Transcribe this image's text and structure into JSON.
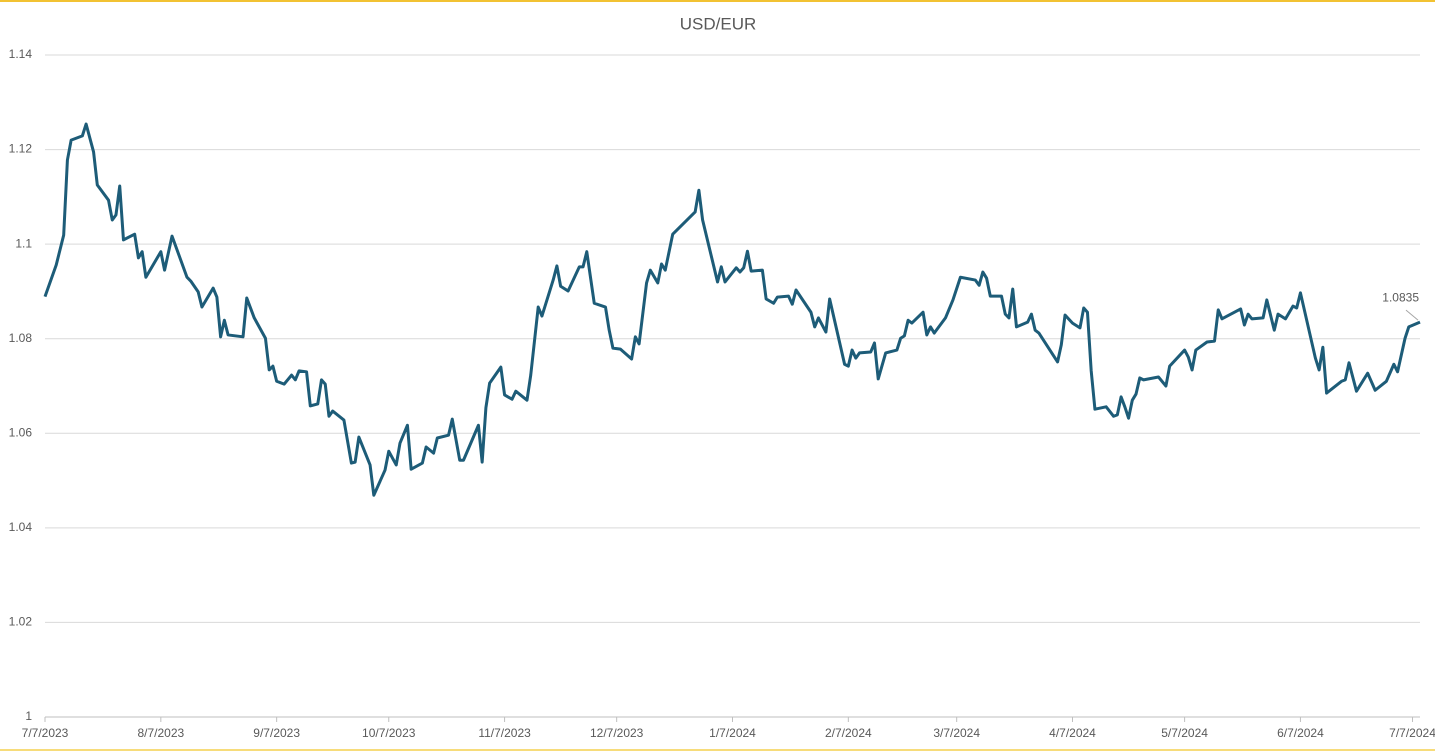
{
  "chart_data": {
    "type": "line",
    "title": "USD/EUR",
    "color": "#1d5c78",
    "grid": true,
    "x": [
      "2023-07-07",
      "2023-07-10",
      "2023-07-12",
      "2023-07-13",
      "2023-07-14",
      "2023-07-17",
      "2023-07-18",
      "2023-07-20",
      "2023-07-21",
      "2023-07-24",
      "2023-07-25",
      "2023-07-26",
      "2023-07-27",
      "2023-07-28",
      "2023-07-31",
      "2023-08-01",
      "2023-08-02",
      "2023-08-03",
      "2023-08-07",
      "2023-08-08",
      "2023-08-10",
      "2023-08-14",
      "2023-08-15",
      "2023-08-17",
      "2023-08-18",
      "2023-08-21",
      "2023-08-22",
      "2023-08-23",
      "2023-08-24",
      "2023-08-25",
      "2023-08-29",
      "2023-08-30",
      "2023-09-01",
      "2023-09-04",
      "2023-09-05",
      "2023-09-06",
      "2023-09-07",
      "2023-09-09",
      "2023-09-11",
      "2023-09-12",
      "2023-09-13",
      "2023-09-15",
      "2023-09-16",
      "2023-09-18",
      "2023-09-19",
      "2023-09-20",
      "2023-09-21",
      "2023-09-22",
      "2023-09-25",
      "2023-09-27",
      "2023-09-28",
      "2023-09-29",
      "2023-10-02",
      "2023-10-03",
      "2023-10-06",
      "2023-10-07",
      "2023-10-09",
      "2023-10-10",
      "2023-10-12",
      "2023-10-13",
      "2023-10-16",
      "2023-10-17",
      "2023-10-19",
      "2023-10-20",
      "2023-10-23",
      "2023-10-24",
      "2023-10-26",
      "2023-10-27",
      "2023-10-31",
      "2023-11-01",
      "2023-11-02",
      "2023-11-03",
      "2023-11-06",
      "2023-11-07",
      "2023-11-09",
      "2023-11-10",
      "2023-11-13",
      "2023-11-14",
      "2023-11-16",
      "2023-11-17",
      "2023-11-20",
      "2023-11-21",
      "2023-11-22",
      "2023-11-24",
      "2023-11-27",
      "2023-11-28",
      "2023-11-29",
      "2023-12-01",
      "2023-12-04",
      "2023-12-05",
      "2023-12-06",
      "2023-12-08",
      "2023-12-11",
      "2023-12-12",
      "2023-12-13",
      "2023-12-15",
      "2023-12-16",
      "2023-12-18",
      "2023-12-19",
      "2023-12-20",
      "2023-12-22",
      "2023-12-28",
      "2023-12-29",
      "2023-12-30",
      "2024-01-03",
      "2024-01-04",
      "2024-01-05",
      "2024-01-08",
      "2024-01-09",
      "2024-01-10",
      "2024-01-11",
      "2024-01-12",
      "2024-01-15",
      "2024-01-16",
      "2024-01-18",
      "2024-01-19",
      "2024-01-22",
      "2024-01-23",
      "2024-01-24",
      "2024-01-28",
      "2024-01-29",
      "2024-01-30",
      "2024-02-01",
      "2024-02-02",
      "2024-02-06",
      "2024-02-07",
      "2024-02-08",
      "2024-02-09",
      "2024-02-10",
      "2024-02-13",
      "2024-02-14",
      "2024-02-15",
      "2024-02-17",
      "2024-02-20",
      "2024-02-21",
      "2024-02-22",
      "2024-02-23",
      "2024-02-24",
      "2024-02-27",
      "2024-02-28",
      "2024-02-29",
      "2024-03-01",
      "2024-03-04",
      "2024-03-06",
      "2024-03-08",
      "2024-03-12",
      "2024-03-13",
      "2024-03-14",
      "2024-03-15",
      "2024-03-16",
      "2024-03-19",
      "2024-03-20",
      "2024-03-21",
      "2024-03-22",
      "2024-03-23",
      "2024-03-26",
      "2024-03-27",
      "2024-03-28",
      "2024-03-29",
      "2024-04-03",
      "2024-04-04",
      "2024-04-05",
      "2024-04-07",
      "2024-04-09",
      "2024-04-10",
      "2024-04-11",
      "2024-04-12",
      "2024-04-13",
      "2024-04-16",
      "2024-04-18",
      "2024-04-19",
      "2024-04-20",
      "2024-04-21",
      "2024-04-22",
      "2024-04-23",
      "2024-04-24",
      "2024-04-25",
      "2024-04-26",
      "2024-04-30",
      "2024-05-02",
      "2024-05-03",
      "2024-05-07",
      "2024-05-08",
      "2024-05-09",
      "2024-05-10",
      "2024-05-13",
      "2024-05-15",
      "2024-05-16",
      "2024-05-17",
      "2024-05-22",
      "2024-05-23",
      "2024-05-24",
      "2024-05-25",
      "2024-05-28",
      "2024-05-29",
      "2024-05-31",
      "2024-06-01",
      "2024-06-03",
      "2024-06-05",
      "2024-06-06",
      "2024-06-07",
      "2024-06-11",
      "2024-06-12",
      "2024-06-13",
      "2024-06-14",
      "2024-06-18",
      "2024-06-19",
      "2024-06-20",
      "2024-06-22",
      "2024-06-25",
      "2024-06-27",
      "2024-06-30",
      "2024-07-02",
      "2024-07-03",
      "2024-07-05",
      "2024-07-06",
      "2024-07-09"
    ],
    "values": [
      1.0889,
      1.0956,
      1.1019,
      1.1178,
      1.122,
      1.1229,
      1.1254,
      1.1195,
      1.1125,
      1.1093,
      1.1051,
      1.1062,
      1.1123,
      1.1009,
      1.1021,
      1.0971,
      1.0984,
      1.093,
      1.0984,
      1.0945,
      1.1017,
      1.093,
      1.0922,
      1.0899,
      1.0867,
      1.0907,
      1.0888,
      1.0804,
      1.0839,
      1.0808,
      1.0804,
      1.0886,
      1.0844,
      1.0801,
      1.0734,
      1.0742,
      1.071,
      1.0704,
      1.0723,
      1.0713,
      1.0732,
      1.073,
      1.0658,
      1.0662,
      1.0713,
      1.0704,
      1.0636,
      1.0647,
      1.0628,
      1.0537,
      1.0539,
      1.0592,
      1.0533,
      1.0469,
      1.0522,
      1.0562,
      1.0533,
      1.0579,
      1.0617,
      1.0524,
      1.0537,
      1.0571,
      1.0558,
      1.059,
      1.0596,
      1.063,
      1.0543,
      1.0543,
      1.0617,
      1.0539,
      1.0654,
      1.0706,
      1.074,
      1.0681,
      1.0672,
      1.0689,
      1.067,
      1.0723,
      1.0867,
      1.0848,
      1.0924,
      1.0954,
      1.0911,
      1.0901,
      1.0952,
      1.0952,
      1.0984,
      1.0875,
      1.0867,
      1.0818,
      1.078,
      1.0778,
      1.0757,
      1.0804,
      1.0789,
      1.0918,
      1.0945,
      1.0918,
      1.0958,
      1.0945,
      1.1021,
      1.1068,
      1.1114,
      1.1051,
      1.092,
      1.0952,
      1.092,
      1.095,
      1.0941,
      1.095,
      1.0985,
      1.0943,
      1.0945,
      1.0884,
      1.0875,
      1.0888,
      1.089,
      1.0873,
      1.0903,
      1.0856,
      1.0825,
      1.0844,
      1.0814,
      1.0884,
      1.0746,
      1.0742,
      1.0776,
      1.0759,
      1.077,
      1.0772,
      1.0791,
      1.0715,
      1.077,
      1.0776,
      1.0801,
      1.0806,
      1.0839,
      1.0833,
      1.0856,
      1.0808,
      1.0825,
      1.0812,
      1.0844,
      1.0882,
      1.093,
      1.0924,
      1.0913,
      1.0941,
      1.0928,
      1.089,
      1.089,
      1.0852,
      1.0844,
      1.0905,
      1.0825,
      1.0835,
      1.0852,
      1.0818,
      1.0812,
      1.0751,
      1.0787,
      1.085,
      1.0833,
      1.0823,
      1.0865,
      1.0856,
      1.0732,
      1.0651,
      1.0656,
      1.0636,
      1.0639,
      1.0677,
      1.0656,
      1.0632,
      1.067,
      1.0683,
      1.0717,
      1.0713,
      1.0719,
      1.07,
      1.0742,
      1.0776,
      1.0761,
      1.0734,
      1.0776,
      1.0793,
      1.0795,
      1.0861,
      1.0842,
      1.0863,
      1.0829,
      1.0852,
      1.0842,
      1.0844,
      1.0882,
      1.0818,
      1.0852,
      1.0842,
      1.0869,
      1.0865,
      1.0897,
      1.0759,
      1.0734,
      1.0782,
      1.0685,
      1.071,
      1.0713,
      1.0749,
      1.0689,
      1.0727,
      1.0691,
      1.071,
      1.0746,
      1.073,
      1.0801,
      1.0825,
      1.0835
    ],
    "xlim": [
      "2023-07-07",
      "2024-07-09"
    ],
    "xticks": [
      {
        "value": "2023-07-07",
        "label": "7/7/2023"
      },
      {
        "value": "2023-08-07",
        "label": "8/7/2023"
      },
      {
        "value": "2023-09-07",
        "label": "9/7/2023"
      },
      {
        "value": "2023-10-07",
        "label": "10/7/2023"
      },
      {
        "value": "2023-11-07",
        "label": "11/7/2023"
      },
      {
        "value": "2023-12-07",
        "label": "12/7/2023"
      },
      {
        "value": "2024-01-07",
        "label": "1/7/2024"
      },
      {
        "value": "2024-02-07",
        "label": "2/7/2024"
      },
      {
        "value": "2024-03-07",
        "label": "3/7/2024"
      },
      {
        "value": "2024-04-07",
        "label": "4/7/2024"
      },
      {
        "value": "2024-05-07",
        "label": "5/7/2024"
      },
      {
        "value": "2024-06-07",
        "label": "6/7/2024"
      },
      {
        "value": "2024-07-07",
        "label": "7/7/2024"
      }
    ],
    "ylim": [
      1,
      1.14
    ],
    "yticks": [
      1,
      1.02,
      1.04,
      1.06,
      1.08,
      1.1,
      1.12,
      1.14
    ],
    "annotation": {
      "text": "1.0835",
      "x": "2024-07-09",
      "y": 1.0835
    }
  }
}
